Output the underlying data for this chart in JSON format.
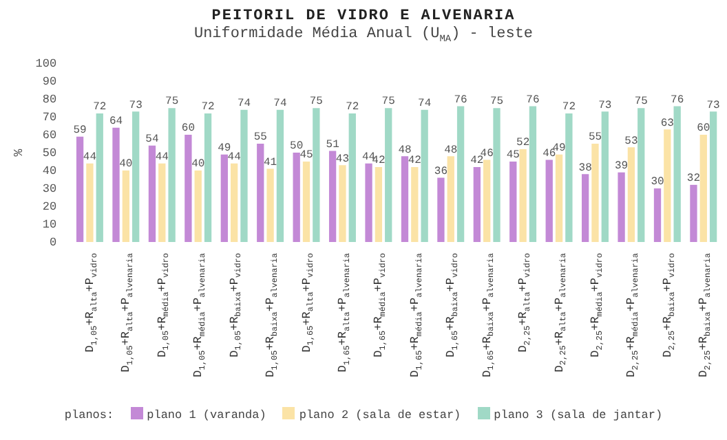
{
  "chart_data": {
    "type": "bar",
    "title": "PEITORIL DE VIDRO E ALVENARIA",
    "subtitle": "Uniformidade Média Anual (U$_{MA}$) - leste",
    "ylabel": "%",
    "legend_title": "planos:",
    "categories": [
      "D$_{1,05}$+R$_{alta}$+P$_{vidro}$",
      "D$_{1,05}$+R$_{alta}$+P$_{alvenaria}$",
      "D$_{1,05}$+R$_{média}$+P$_{vidro}$",
      "D$_{1,05}$+R$_{média}$+P$_{alvenaria}$",
      "D$_{1,05}$+R$_{baixa}$+P$_{vidro}$",
      "D$_{1,05}$+R$_{baixa}$+P$_{alvenaria}$",
      "D$_{1,65}$+R$_{alta}$+P$_{vidro}$",
      "D$_{1,65}$+R$_{alta}$+P$_{alvenaria}$",
      "D$_{1,65}$+R$_{média}$+P$_{vidro}$",
      "D$_{1,65}$+R$_{média}$+P$_{alvenaria}$",
      "D$_{1,65}$+R$_{baixa}$+P$_{vidro}$",
      "D$_{1,65}$+R$_{baixa}$+P$_{alvenaria}$",
      "D$_{2,25}$+R$_{alta}$+P$_{vidro}$",
      "D$_{2,25}$+R$_{alta}$+P$_{alvenaria}$",
      "D$_{2,25}$+R$_{média}$+P$_{vidro}$",
      "D$_{2,25}$+R$_{média}$+P$_{alvenaria}$",
      "D$_{2,25}$+R$_{baixa}$+P$_{vidro}$",
      "D$_{2,25}$+R$_{baixa}$+P$_{alvenaria}$"
    ],
    "series": [
      {
        "name": "plano 1 (varanda)",
        "color": "#c389d6",
        "values": [
          59,
          64,
          54,
          60,
          49,
          55,
          50,
          51,
          44,
          48,
          36,
          42,
          45,
          46,
          38,
          39,
          30,
          32
        ]
      },
      {
        "name": "plano 2 (sala de estar)",
        "color": "#fbe3a6",
        "values": [
          44,
          40,
          44,
          40,
          44,
          41,
          45,
          43,
          42,
          42,
          48,
          46,
          52,
          49,
          55,
          53,
          63,
          60
        ]
      },
      {
        "name": "plano 3 (sala de jantar)",
        "color": "#a0d9c6",
        "values": [
          72,
          73,
          75,
          72,
          74,
          74,
          75,
          72,
          75,
          74,
          76,
          75,
          76,
          72,
          73,
          75,
          76,
          73
        ]
      }
    ],
    "ylim": [
      0,
      100
    ],
    "yticks": [
      0,
      10,
      20,
      30,
      40,
      50,
      60,
      70,
      80,
      90,
      100
    ],
    "grid": false,
    "legend": "bottom",
    "data_labels": true
  }
}
